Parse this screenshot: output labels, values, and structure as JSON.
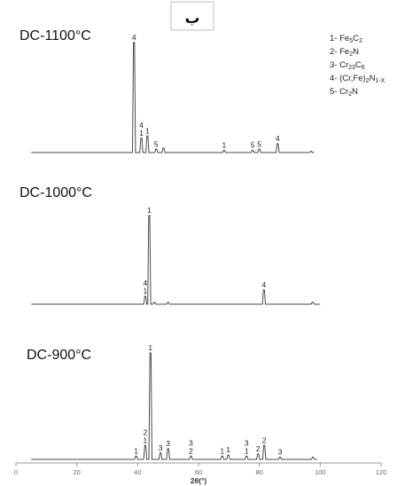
{
  "badge": "ب",
  "chart_data": {
    "type": "line",
    "xlabel": "2θ(°)",
    "xlim": [
      0,
      120
    ],
    "xticks": [
      0,
      20,
      40,
      60,
      80,
      100,
      120
    ],
    "grid": false,
    "legend_position": "top-right",
    "legend": [
      {
        "num": "1-",
        "parts": [
          [
            "Fe",
            ""
          ],
          [
            "5",
            "sub"
          ],
          [
            "C",
            ""
          ],
          [
            "2",
            "sub"
          ]
        ]
      },
      {
        "num": "2-",
        "parts": [
          [
            "Fe",
            ""
          ],
          [
            "2",
            "sub"
          ],
          [
            "N",
            ""
          ]
        ]
      },
      {
        "num": "3-",
        "parts": [
          [
            "Cr",
            ""
          ],
          [
            "23",
            "sub"
          ],
          [
            "C",
            ""
          ],
          [
            "6",
            "sub"
          ]
        ]
      },
      {
        "num": "4-",
        "parts": [
          [
            "(Cr,Fe)",
            ""
          ],
          [
            "2",
            "sub"
          ],
          [
            "N",
            ""
          ],
          [
            "1-X",
            "sub"
          ]
        ]
      },
      {
        "num": "5-",
        "parts": [
          [
            "Cr",
            ""
          ],
          [
            "2",
            "sub"
          ],
          [
            "N",
            ""
          ]
        ]
      }
    ],
    "panels": [
      {
        "title": "DC-1100°C",
        "x_range": [
          5,
          98
        ],
        "peaks": [
          {
            "x": 38.8,
            "h": 1.0,
            "label": "4"
          },
          {
            "x": 41.2,
            "h": 0.13,
            "label": "4\n1"
          },
          {
            "x": 43.2,
            "h": 0.15,
            "label": "1"
          },
          {
            "x": 46.1,
            "h": 0.03,
            "label": "5"
          },
          {
            "x": 48.5,
            "h": 0.04,
            "label": ""
          },
          {
            "x": 68.4,
            "h": 0.02,
            "label": "1"
          },
          {
            "x": 77.8,
            "h": 0.02,
            "label": "5"
          },
          {
            "x": 80.0,
            "h": 0.03,
            "label": "5"
          },
          {
            "x": 86.0,
            "h": 0.08,
            "label": "4"
          },
          {
            "x": 97.0,
            "h": 0.01,
            "label": ""
          }
        ]
      },
      {
        "title": "DC-1000°C",
        "x_range": [
          5,
          100
        ],
        "peaks": [
          {
            "x": 42.5,
            "h": 0.09,
            "label": "4\n1"
          },
          {
            "x": 43.8,
            "h": 1.0,
            "label": "1"
          },
          {
            "x": 45.5,
            "h": 0.02,
            "label": ""
          },
          {
            "x": 50.0,
            "h": 0.02,
            "label": ""
          },
          {
            "x": 81.5,
            "h": 0.16,
            "label": "4"
          },
          {
            "x": 97.5,
            "h": 0.02,
            "label": ""
          }
        ]
      },
      {
        "title": "DC-900°C",
        "x_range": [
          5,
          99
        ],
        "peaks": [
          {
            "x": 39.5,
            "h": 0.03,
            "label": "1"
          },
          {
            "x": 42.5,
            "h": 0.13,
            "label": "2\n1"
          },
          {
            "x": 44.2,
            "h": 1.0,
            "label": "1"
          },
          {
            "x": 47.5,
            "h": 0.06,
            "label": "3"
          },
          {
            "x": 50.0,
            "h": 0.1,
            "label": "3"
          },
          {
            "x": 57.5,
            "h": 0.03,
            "label": "3\n2"
          },
          {
            "x": 67.8,
            "h": 0.03,
            "label": "1"
          },
          {
            "x": 69.8,
            "h": 0.04,
            "label": "1"
          },
          {
            "x": 75.8,
            "h": 0.03,
            "label": "3\n1"
          },
          {
            "x": 79.6,
            "h": 0.05,
            "label": "2"
          },
          {
            "x": 81.6,
            "h": 0.13,
            "label": "2"
          },
          {
            "x": 86.8,
            "h": 0.02,
            "label": "3"
          },
          {
            "x": 97.6,
            "h": 0.02,
            "label": ""
          }
        ]
      }
    ]
  }
}
